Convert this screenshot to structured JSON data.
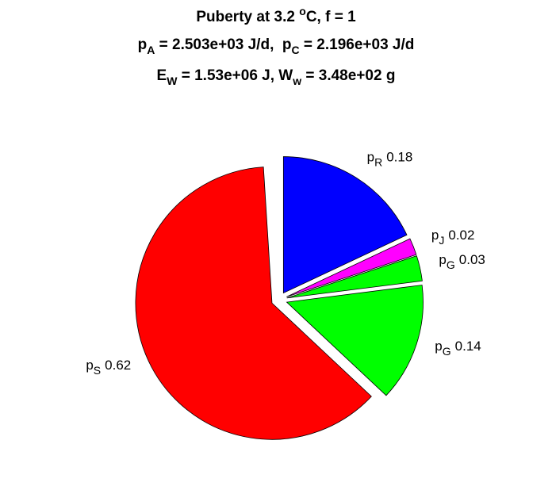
{
  "chart_data": {
    "type": "pie",
    "title": [
      [
        {
          "text": "Puberty at 3.2 "
        },
        {
          "sup": "o"
        },
        {
          "text": "C, f = 1"
        }
      ],
      [
        {
          "text": "p"
        },
        {
          "sub": "A"
        },
        {
          "text": " = 2.503e+03 J/d,  p"
        },
        {
          "sub": "C"
        },
        {
          "text": " = 2.196e+03 J/d"
        }
      ],
      [
        {
          "text": "E"
        },
        {
          "sub": "W"
        },
        {
          "text": " = 1.53e+06 J, W"
        },
        {
          "sub": "w"
        },
        {
          "text": " = 3.48e+02 g"
        }
      ]
    ],
    "labels": [
      {
        "base": "p",
        "sub": "R"
      },
      {
        "base": "p",
        "sub": "J"
      },
      {
        "base": "p",
        "sub": "G"
      },
      {
        "base": "p",
        "sub": "G"
      },
      {
        "base": "p",
        "sub": "S"
      }
    ],
    "values": [
      0.18,
      0.02,
      0.03,
      0.14,
      0.62
    ],
    "colors": [
      "#0000ff",
      "#ff00ff",
      "#00ff00",
      "#00ff00",
      "#ff0000"
    ],
    "exploded": true
  }
}
